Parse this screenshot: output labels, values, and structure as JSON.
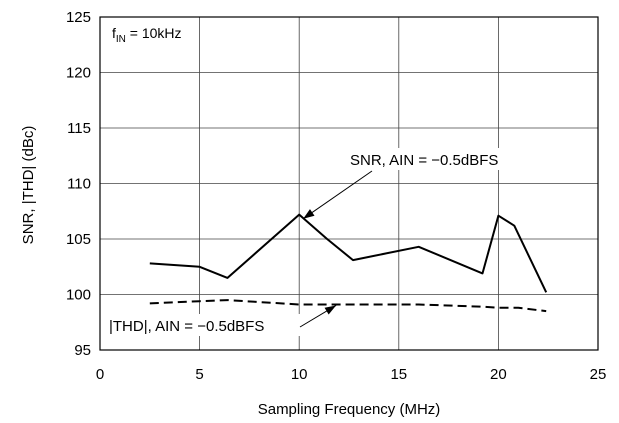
{
  "chart_data": {
    "type": "line",
    "title": "",
    "xlabel": "Sampling Frequency (MHz)",
    "ylabel": "SNR, |THD| (dBc)",
    "xlim": [
      0,
      25
    ],
    "ylim": [
      95,
      125
    ],
    "xticks": [
      0,
      5,
      10,
      15,
      20,
      25
    ],
    "yticks": [
      95,
      100,
      105,
      110,
      115,
      120,
      125
    ],
    "grid": true,
    "condition": {
      "main": "f",
      "sub": "IN",
      "rest": " = 10kHz"
    },
    "series": [
      {
        "name": "SNR, AIN = −0.5dBFS",
        "style": "solid",
        "color": "#000000",
        "x": [
          2.5,
          5,
          6.4,
          10,
          11.4,
          12.7,
          16,
          19.2,
          20,
          20.8,
          22.4
        ],
        "y": [
          102.8,
          102.5,
          101.5,
          107.2,
          105.0,
          103.1,
          104.3,
          101.9,
          107.1,
          106.2,
          100.2
        ]
      },
      {
        "name": "|THD|, AIN = −0.5dBFS",
        "style": "dashed",
        "color": "#000000",
        "x": [
          2.5,
          5,
          6.4,
          10,
          12.7,
          16,
          19.2,
          20,
          21,
          22.4
        ],
        "y": [
          99.2,
          99.4,
          99.5,
          99.1,
          99.1,
          99.1,
          98.9,
          98.8,
          98.8,
          98.5
        ]
      }
    ],
    "annotations": [
      {
        "text": "SNR, AIN = −0.5dBFS",
        "series": 0,
        "point_x": 10.1,
        "point_y": 107.1
      },
      {
        "text": "|THD|, AIN = −0.5dBFS",
        "series": 1,
        "point_x": 11.8,
        "point_y": 99.1
      }
    ]
  }
}
